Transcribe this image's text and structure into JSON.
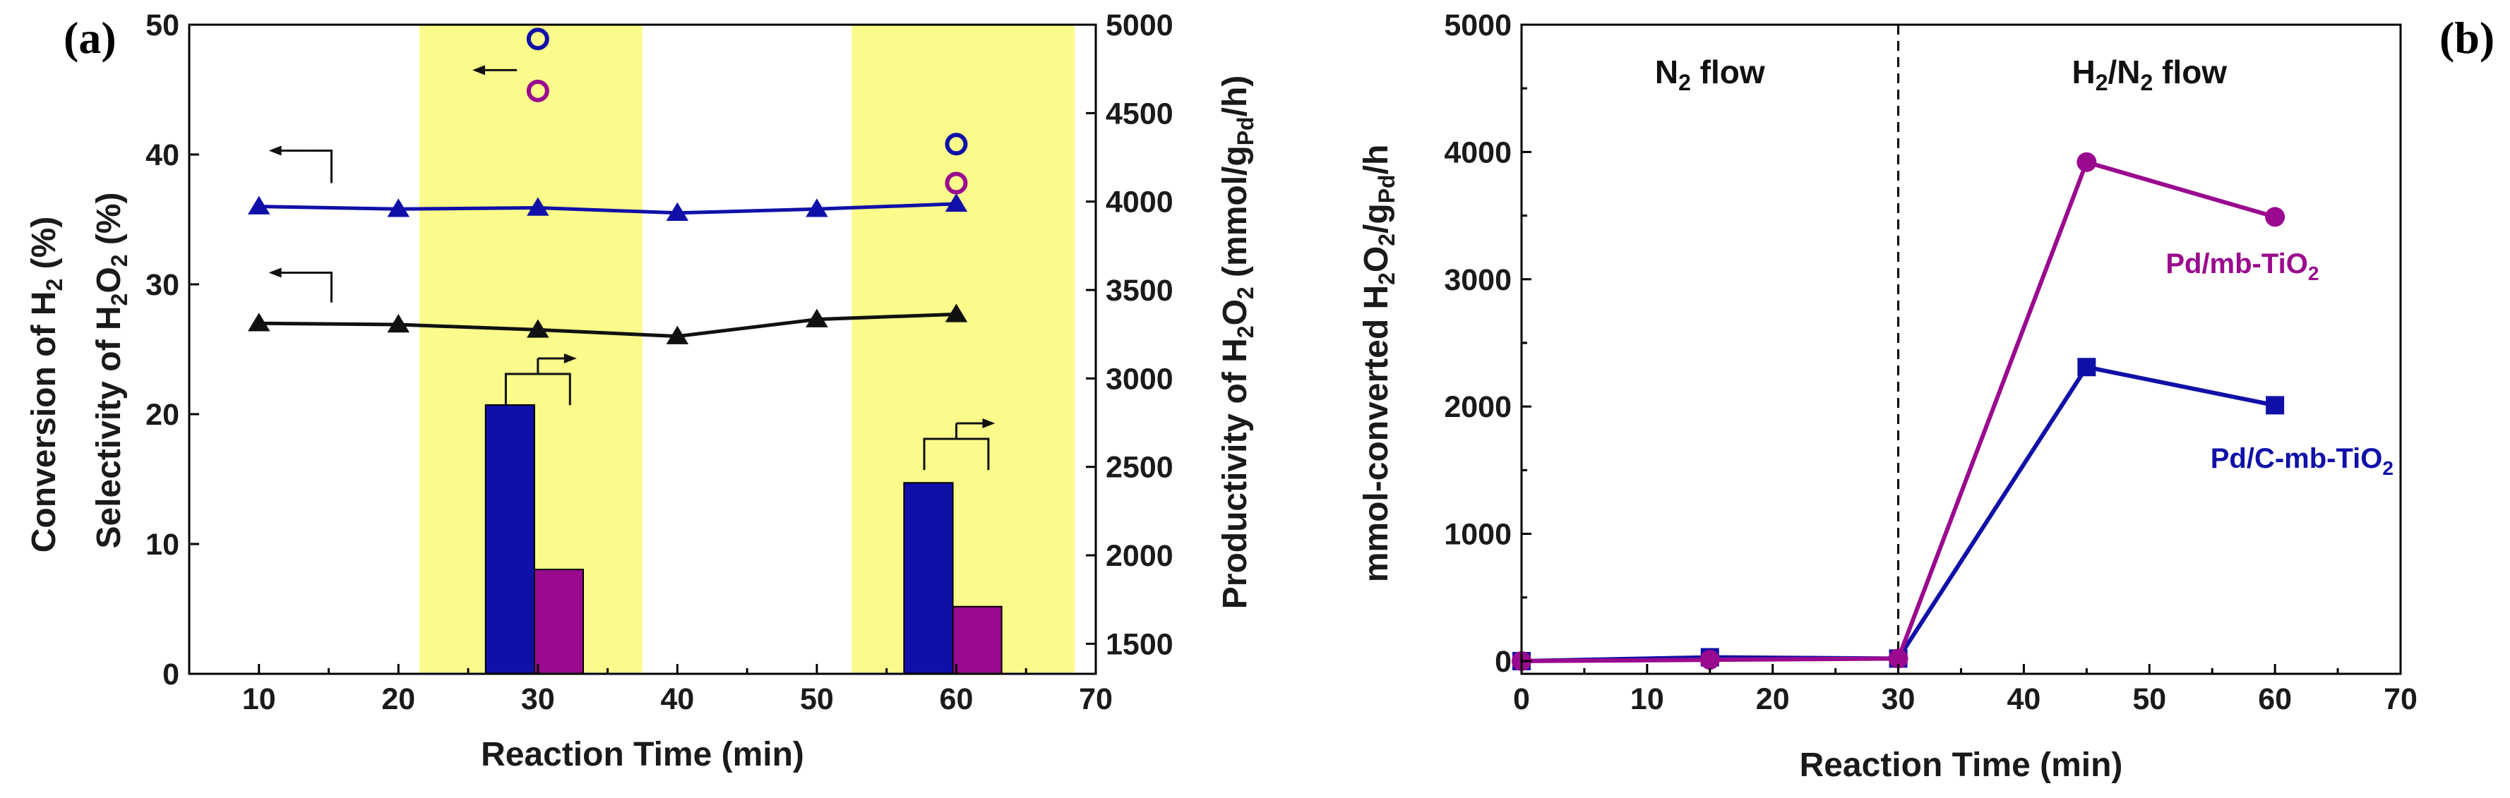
{
  "colors": {
    "blue": "#1010a8",
    "purple": "#9a0a8e",
    "black": "#111111",
    "yellow": "#fbfb8c"
  },
  "chart_data": [
    {
      "panel_label": "(a)",
      "type": "bar",
      "xlabel": "Reaction Time (min)",
      "ylabel_left": [
        "Conversion of H",
        "2",
        " (%)"
      ],
      "ylabel_left2": [
        "Selectivity of H",
        "2",
        "O",
        "2",
        " (%)"
      ],
      "ylabel_right": [
        "Productivity of H",
        "2",
        "O",
        "2",
        " (mmol/g",
        "Pd",
        "/h)"
      ],
      "xlim": [
        5,
        70
      ],
      "ylim_left": [
        0,
        50
      ],
      "ylim_right": [
        1330,
        5000
      ],
      "x_ticks": [
        "10",
        "20",
        "30",
        "40",
        "50",
        "60",
        "70"
      ],
      "y_left_ticks": [
        "0",
        "10",
        "20",
        "30",
        "40",
        "50"
      ],
      "y_right_ticks": [
        "1500",
        "2000",
        "2500",
        "3000",
        "3500",
        "4000",
        "4500",
        "5000"
      ],
      "highlight_bands": [
        [
          21.5,
          37.5
        ],
        [
          52.5,
          68.5
        ]
      ],
      "series": [
        {
          "name": "Selectivity of H2O2",
          "kind": "line-triangle",
          "color": "blue",
          "axis": "left",
          "x": [
            10,
            20,
            30,
            40,
            50,
            60
          ],
          "y": [
            36.0,
            35.8,
            35.9,
            35.5,
            35.8,
            36.2
          ]
        },
        {
          "name": "Conversion of H2",
          "kind": "line-triangle",
          "color": "black",
          "axis": "left",
          "x": [
            10,
            20,
            30,
            40,
            50,
            60
          ],
          "y": [
            27.0,
            26.9,
            26.5,
            26.0,
            27.3,
            27.7
          ]
        },
        {
          "name": "Open circles (blue)",
          "kind": "open-circle",
          "color": "blue",
          "axis": "left",
          "x": [
            30,
            60
          ],
          "y": [
            48.9,
            40.8
          ]
        },
        {
          "name": "Open circles (purple)",
          "kind": "open-circle",
          "color": "purple",
          "axis": "left",
          "x": [
            30,
            60
          ],
          "y": [
            44.9,
            37.8
          ]
        },
        {
          "name": "Productivity of H2O2 (blue bars)",
          "kind": "bar",
          "color": "blue",
          "axis": "right",
          "x": [
            28.0,
            58.0
          ],
          "y": [
            2850,
            2410
          ]
        },
        {
          "name": "Productivity of H2O2 (purple bars)",
          "kind": "bar",
          "color": "purple",
          "axis": "right",
          "x": [
            31.5,
            61.5
          ],
          "y": [
            1920,
            1710
          ]
        }
      ]
    },
    {
      "panel_label": "(b)",
      "type": "line",
      "xlabel": "Reaction Time (min)",
      "ylabel": [
        "mmol-converted H",
        "2",
        "O",
        "2",
        "/g",
        "Pd",
        "/h"
      ],
      "xlim": [
        0,
        70
      ],
      "ylim": [
        -100,
        5000
      ],
      "x_ticks": [
        "0",
        "10",
        "20",
        "30",
        "40",
        "50",
        "60",
        "70"
      ],
      "y_ticks": [
        "0",
        "1000",
        "2000",
        "3000",
        "4000",
        "5000"
      ],
      "divider_x": 30,
      "region_labels": {
        "left": [
          "N",
          "2",
          " flow"
        ],
        "right": [
          "H",
          "2",
          "/N",
          "2",
          " flow"
        ]
      },
      "series": [
        {
          "name": "Pd/C-mb-TiO2",
          "label_parts": [
            "Pd/C-mb-TiO",
            "2"
          ],
          "marker": "square",
          "color": "blue",
          "x": [
            0,
            15,
            30,
            45,
            60
          ],
          "y": [
            0,
            30,
            20,
            2310,
            2010
          ]
        },
        {
          "name": "Pd/mb-TiO2",
          "label_parts": [
            "Pd/mb-TiO",
            "2"
          ],
          "marker": "circle",
          "color": "purple",
          "x": [
            0,
            15,
            30,
            45,
            60
          ],
          "y": [
            0,
            10,
            20,
            3920,
            3490
          ]
        }
      ]
    }
  ]
}
